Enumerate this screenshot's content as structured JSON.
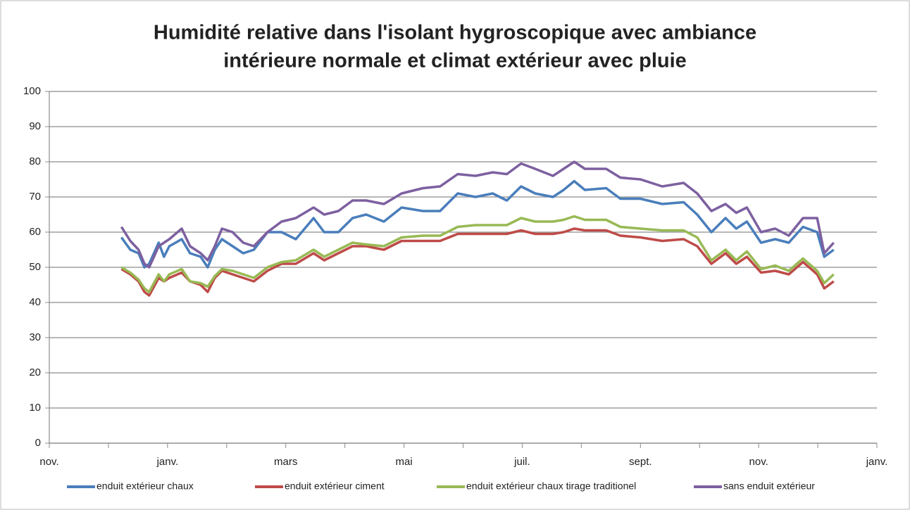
{
  "chart_data": {
    "type": "line",
    "title": [
      "Humidité relative dans l'isolant hygroscopique avec ambiance",
      "intérieure normale et climat extérieur avec pluie"
    ],
    "x": [
      1.22,
      1.37,
      1.51,
      1.61,
      1.69,
      1.85,
      1.94,
      2.03,
      2.24,
      2.38,
      2.56,
      2.68,
      2.8,
      2.92,
      3.1,
      3.28,
      3.46,
      3.69,
      3.93,
      4.17,
      4.47,
      4.65,
      4.89,
      5.13,
      5.36,
      5.66,
      5.96,
      6.32,
      6.61,
      6.91,
      7.21,
      7.5,
      7.74,
      7.98,
      8.22,
      8.52,
      8.7,
      8.88,
      9.06,
      9.42,
      9.66,
      10.0,
      10.37,
      10.73,
      10.96,
      11.2,
      11.44,
      11.62,
      11.8,
      12.04,
      12.28,
      12.51,
      12.75,
      12.99,
      13.11,
      13.27
    ],
    "series": [
      {
        "name": "enduit extérieur chaux",
        "color": "#4a7ebb",
        "values": [
          58.5,
          55,
          54,
          50,
          51,
          57,
          53,
          56,
          58,
          54,
          53,
          50,
          55,
          58,
          56,
          54,
          55,
          60,
          60,
          58,
          64,
          60,
          60,
          64,
          65,
          63,
          67,
          66,
          66,
          71,
          70,
          71,
          69,
          73,
          71,
          70,
          72,
          74.5,
          72,
          72.5,
          69.5,
          69.5,
          68,
          68.5,
          65,
          60,
          64,
          61,
          63,
          57,
          58,
          57,
          61.5,
          60,
          53,
          55
        ]
      },
      {
        "name": "enduit extérieur ciment",
        "color": "#be4b48",
        "values": [
          49.5,
          48,
          46,
          43,
          42,
          47,
          46,
          47,
          48.5,
          46,
          45,
          43,
          47,
          49,
          48,
          47,
          46,
          49,
          51,
          51,
          54,
          52,
          54,
          56,
          56,
          55,
          57.5,
          57.5,
          57.5,
          59.5,
          59.5,
          59.5,
          59.5,
          60.5,
          59.5,
          59.5,
          60,
          61,
          60.5,
          60.5,
          59,
          58.5,
          57.5,
          58,
          56,
          51,
          54,
          51,
          53,
          48.5,
          49,
          48,
          51.5,
          48,
          44,
          46
        ]
      },
      {
        "name": "enduit extérieur chaux tirage traditionel",
        "color": "#98b954",
        "values": [
          50,
          48.5,
          46.5,
          44,
          43,
          48,
          46,
          48,
          49.5,
          46,
          45.5,
          44.5,
          47.5,
          49.5,
          49,
          48,
          47,
          50,
          51.5,
          52,
          55,
          53,
          55,
          57,
          56.5,
          56,
          58.5,
          59,
          59,
          61.5,
          62,
          62,
          62,
          64,
          63,
          63,
          63.5,
          64.5,
          63.5,
          63.5,
          61.5,
          61,
          60.5,
          60.5,
          58.5,
          52,
          55,
          52,
          54.5,
          49.5,
          50.5,
          49,
          52.5,
          49,
          45.5,
          48
        ]
      },
      {
        "name": "sans enduit extérieur",
        "color": "#7d60a0",
        "values": [
          61.5,
          57.5,
          55,
          51,
          50,
          56,
          57,
          58,
          61,
          56,
          54,
          52,
          56,
          61,
          60,
          57,
          56,
          60,
          63,
          64,
          67,
          65,
          66,
          69,
          69,
          68,
          71,
          72.5,
          73,
          76.5,
          76,
          77,
          76.5,
          79.5,
          78,
          76,
          78,
          80,
          78,
          78,
          75.5,
          75,
          73,
          74,
          71,
          66,
          68,
          65.5,
          67,
          60,
          61,
          59,
          64,
          64,
          54,
          57
        ]
      }
    ],
    "xlim": [
      0,
      14
    ],
    "xticks": [
      {
        "value": 0,
        "label": "nov."
      },
      {
        "value": 2,
        "label": "janv."
      },
      {
        "value": 4,
        "label": "mars"
      },
      {
        "value": 6,
        "label": "mai"
      },
      {
        "value": 8,
        "label": "juil."
      },
      {
        "value": 10,
        "label": "sept."
      },
      {
        "value": 12,
        "label": "nov."
      },
      {
        "value": 14,
        "label": "janv."
      }
    ],
    "xminor_ticks": [
      1,
      3,
      5,
      7,
      9,
      11,
      13
    ],
    "ylim": [
      0,
      100
    ],
    "yticks": [
      0,
      10,
      20,
      30,
      40,
      50,
      60,
      70,
      80,
      90,
      100
    ],
    "grid": true,
    "legend": "bottom"
  }
}
